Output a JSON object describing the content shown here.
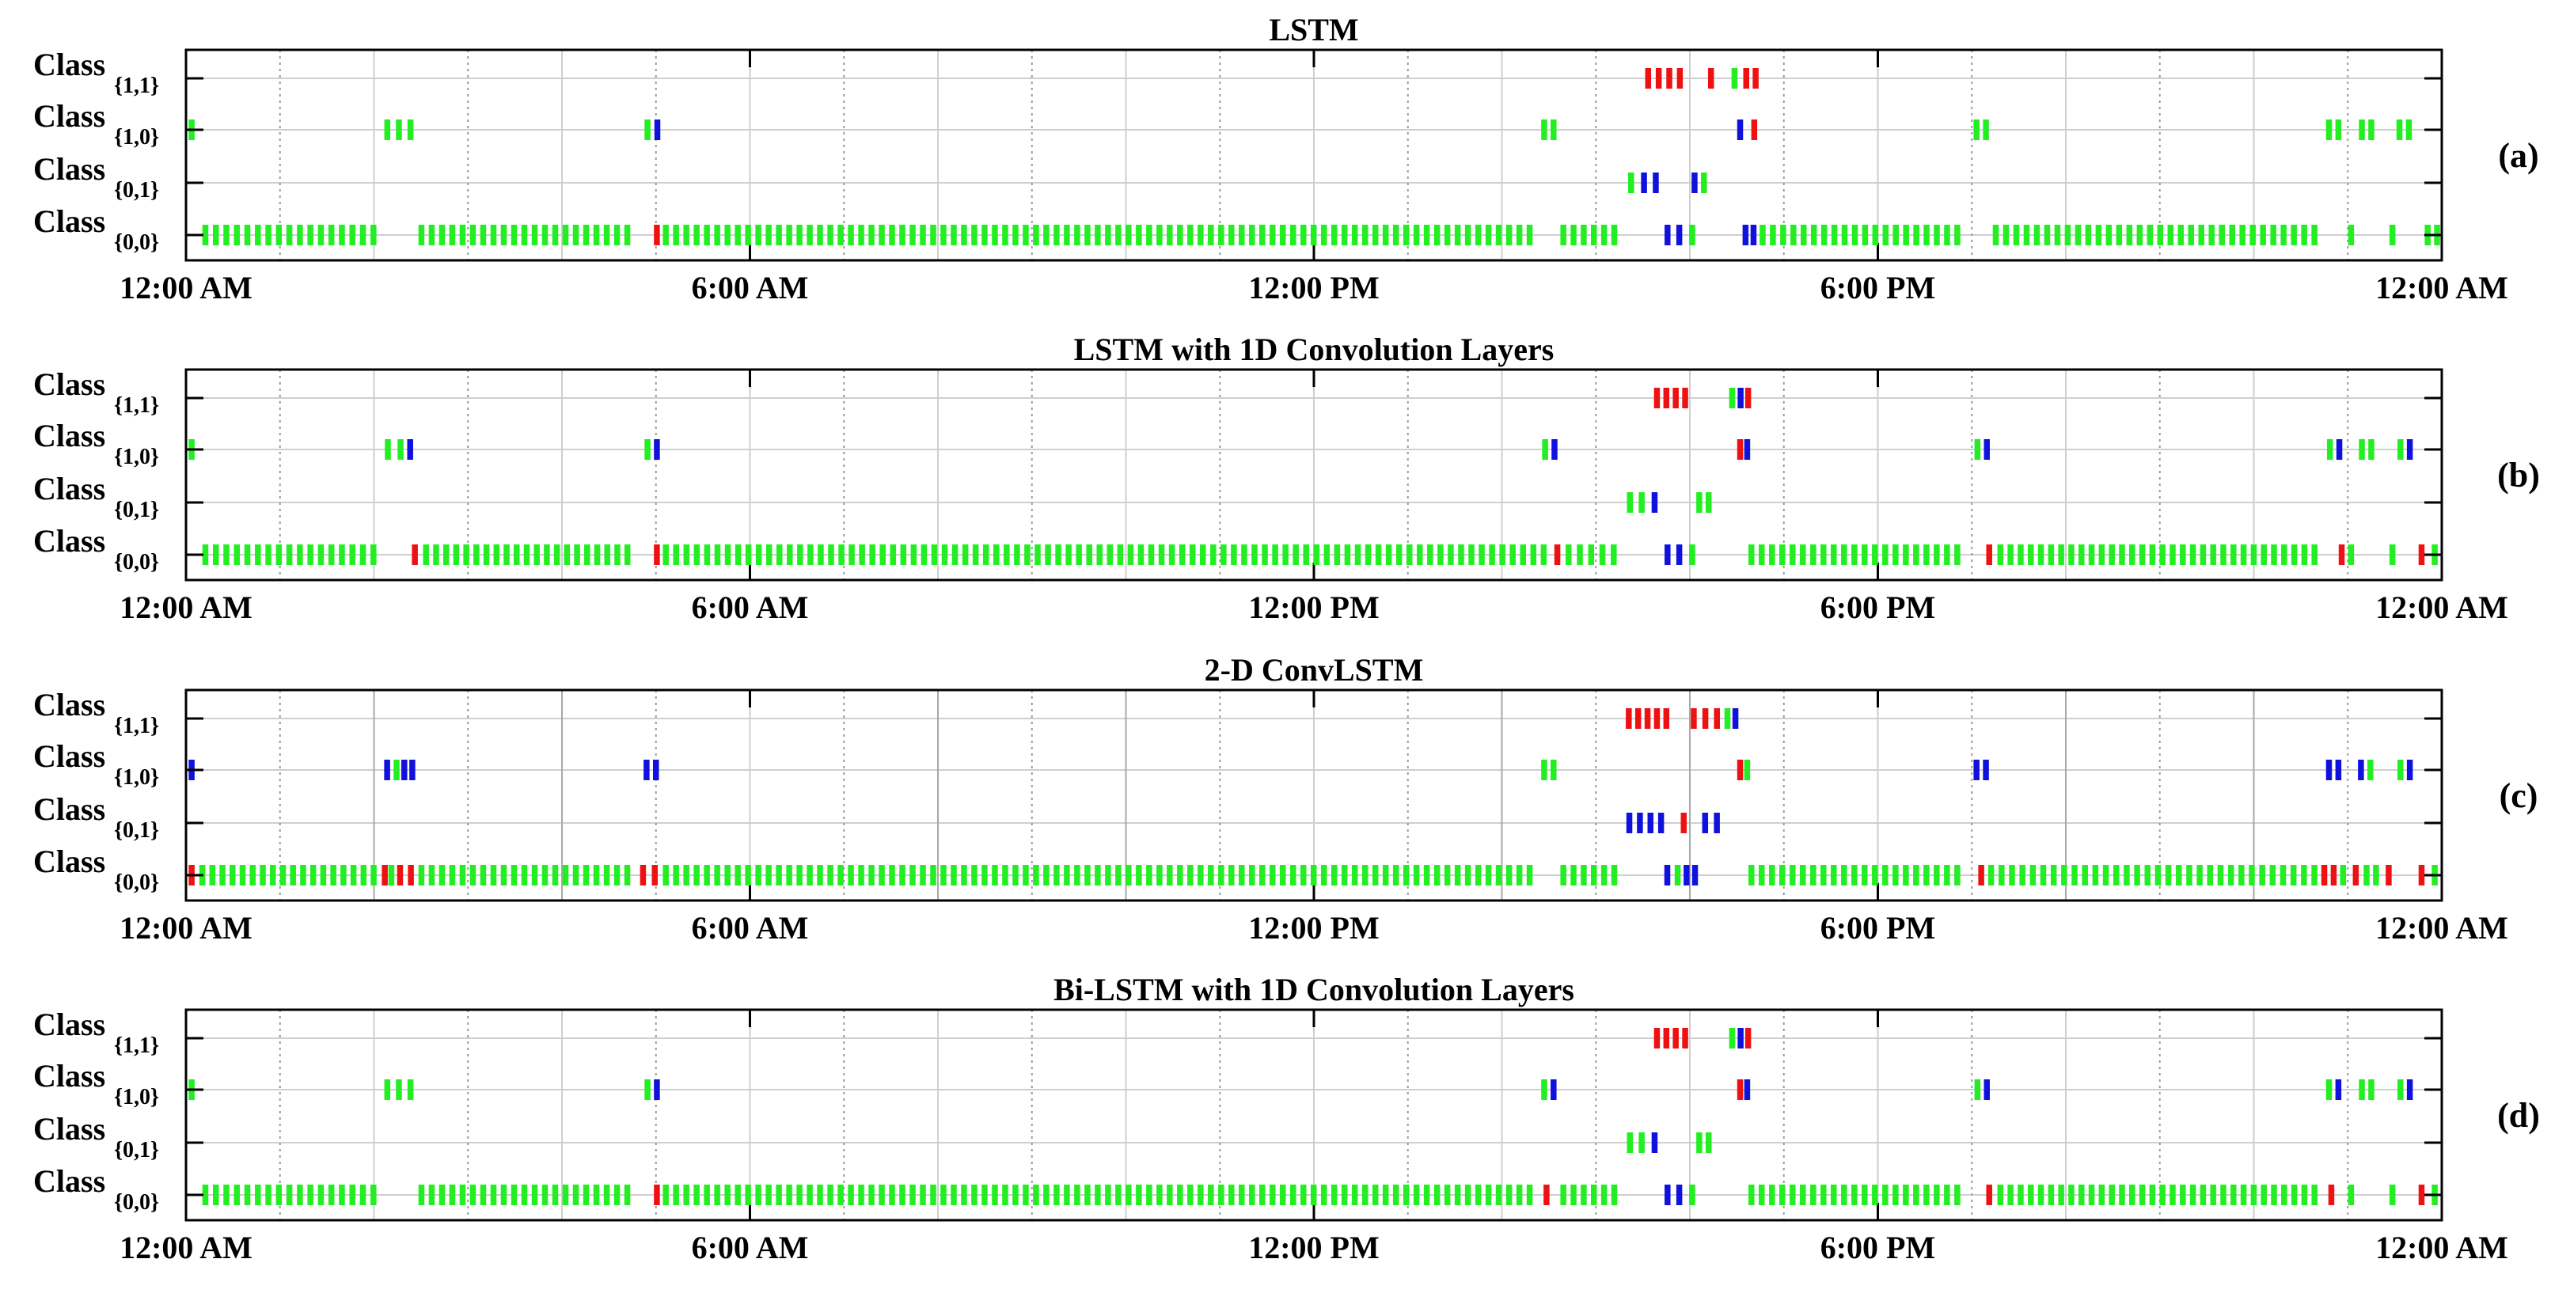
{
  "figure": {
    "x_ticks": [
      "12:00 AM",
      "6:00 AM",
      "12:00 PM",
      "6:00 PM",
      "12:00 AM"
    ],
    "class_levels": [
      {
        "label": "Class",
        "sub": "{1,1}"
      },
      {
        "label": "Class",
        "sub": "{1,0}"
      },
      {
        "label": "Class",
        "sub": "{0,1}"
      },
      {
        "label": "Class",
        "sub": "{0,0}"
      }
    ],
    "colors": {
      "green": "#22ee22",
      "red": "#ee1111",
      "blue": "#1111dd",
      "grid": "#cfcfcf",
      "dotted": "#9a9a9a",
      "axis": "#000000"
    }
  },
  "chart_data": [
    {
      "type": "scatter",
      "title": "LSTM",
      "panel_label": "(a)",
      "xlim_hours": [
        0,
        24
      ],
      "y_levels": [
        "{0,0}",
        "{0,1}",
        "{1,0}",
        "{1,1}"
      ],
      "marks": {
        "{1,1}": [
          [
            "red",
            15.5,
            15.95
          ],
          [
            "red",
            16.15,
            16.3
          ],
          [
            "green",
            16.4,
            16.55
          ],
          [
            "red",
            16.55,
            16.75
          ]
        ],
        "{1,0}": [
          [
            "green",
            0.0,
            0.12
          ],
          [
            "green",
            2.08,
            2.45
          ],
          [
            "green",
            4.85,
            4.97
          ],
          [
            "blue",
            4.98,
            5.05
          ],
          [
            "green",
            14.4,
            14.6
          ],
          [
            "blue",
            16.5,
            16.57
          ],
          [
            "red",
            16.65,
            16.72
          ],
          [
            "green",
            19.0,
            19.2
          ],
          [
            "green",
            22.75,
            22.95
          ],
          [
            "green",
            23.1,
            23.3
          ],
          [
            "green",
            23.5,
            23.7
          ]
        ],
        "{0,1}": [
          [
            "green",
            15.3,
            15.45
          ],
          [
            "blue",
            15.45,
            15.7
          ],
          [
            "blue",
            16.0,
            16.1
          ],
          [
            "green",
            16.1,
            16.2
          ]
        ],
        "{0,0}": [
          [
            "green",
            0.15,
            2.05
          ],
          [
            "green",
            2.45,
            4.75
          ],
          [
            "red",
            4.97,
            5.05
          ],
          [
            "green",
            5.05,
            14.35
          ],
          [
            "green",
            14.6,
            15.25
          ],
          [
            "blue",
            15.7,
            15.95
          ],
          [
            "green",
            15.95,
            16.1
          ],
          [
            "blue",
            16.55,
            16.72
          ],
          [
            "green",
            16.72,
            18.9
          ],
          [
            "green",
            19.2,
            22.7
          ],
          [
            "green",
            23.0,
            23.07
          ],
          [
            "green",
            23.4,
            23.55
          ],
          [
            "green",
            23.8,
            24.0
          ]
        ]
      }
    },
    {
      "type": "scatter",
      "title": "LSTM with 1D Convolution Layers",
      "panel_label": "(b)",
      "xlim_hours": [
        0,
        24
      ],
      "y_levels": [
        "{0,0}",
        "{0,1}",
        "{1,0}",
        "{1,1}"
      ],
      "marks": {
        "{1,1}": [
          [
            "red",
            15.6,
            16.0
          ],
          [
            "green",
            16.4,
            16.5
          ],
          [
            "blue",
            16.5,
            16.58
          ],
          [
            "red",
            16.58,
            16.66
          ]
        ],
        "{1,0}": [
          [
            "green",
            0.0,
            0.12
          ],
          [
            "green",
            2.08,
            2.35
          ],
          [
            "blue",
            2.35,
            2.42
          ],
          [
            "green",
            4.85,
            4.97
          ],
          [
            "blue",
            4.97,
            5.05
          ],
          [
            "green",
            14.4,
            14.52
          ],
          [
            "blue",
            14.52,
            14.6
          ],
          [
            "red",
            16.5,
            16.57
          ],
          [
            "blue",
            16.57,
            16.65
          ],
          [
            "green",
            19.0,
            19.12
          ],
          [
            "blue",
            19.12,
            19.2
          ],
          [
            "green",
            22.75,
            22.87
          ],
          [
            "blue",
            22.87,
            22.95
          ],
          [
            "green",
            23.1,
            23.3
          ],
          [
            "green",
            23.5,
            23.62
          ],
          [
            "blue",
            23.62,
            23.7
          ]
        ],
        "{0,1}": [
          [
            "green",
            15.3,
            15.55
          ],
          [
            "blue",
            15.55,
            15.7
          ],
          [
            "green",
            16.05,
            16.25
          ]
        ],
        "{0,0}": [
          [
            "green",
            0.15,
            2.05
          ],
          [
            "red",
            2.4,
            2.47
          ],
          [
            "green",
            2.5,
            4.75
          ],
          [
            "red",
            4.97,
            5.05
          ],
          [
            "green",
            5.05,
            14.5
          ],
          [
            "red",
            14.55,
            14.63
          ],
          [
            "green",
            14.65,
            15.25
          ],
          [
            "blue",
            15.7,
            15.95
          ],
          [
            "green",
            15.95,
            16.1
          ],
          [
            "green",
            16.6,
            18.9
          ],
          [
            "red",
            19.15,
            19.22
          ],
          [
            "green",
            19.25,
            22.7
          ],
          [
            "red",
            22.9,
            22.97
          ],
          [
            "green",
            23.0,
            23.07
          ],
          [
            "green",
            23.4,
            23.55
          ],
          [
            "red",
            23.75,
            23.82
          ],
          [
            "green",
            23.85,
            24.0
          ]
        ]
      }
    },
    {
      "type": "scatter",
      "title": "2-D ConvLSTM",
      "panel_label": "(c)",
      "xlim_hours": [
        0,
        24
      ],
      "y_levels": [
        "{0,0}",
        "{0,1}",
        "{1,0}",
        "{1,1}"
      ],
      "marks": {
        "{1,1}": [
          [
            "red",
            15.3,
            15.8
          ],
          [
            "red",
            15.98,
            16.35
          ],
          [
            "green",
            16.35,
            16.45
          ],
          [
            "blue",
            16.45,
            16.52
          ]
        ],
        "{1,0}": [
          [
            "blue",
            0.0,
            0.12
          ],
          [
            "blue",
            2.08,
            2.2
          ],
          [
            "green",
            2.2,
            2.28
          ],
          [
            "blue",
            2.28,
            2.45
          ],
          [
            "blue",
            4.85,
            5.05
          ],
          [
            "green",
            14.4,
            14.6
          ],
          [
            "red",
            16.5,
            16.57
          ],
          [
            "green",
            16.57,
            16.65
          ],
          [
            "blue",
            19.0,
            19.2
          ],
          [
            "blue",
            22.75,
            22.95
          ],
          [
            "blue",
            23.1,
            23.18
          ],
          [
            "green",
            23.18,
            23.3
          ],
          [
            "green",
            23.5,
            23.62
          ],
          [
            "blue",
            23.62,
            23.7
          ]
        ],
        "{0,1}": [
          [
            "blue",
            15.3,
            15.75
          ],
          [
            "red",
            15.9,
            15.97
          ],
          [
            "blue",
            16.1,
            16.35
          ]
        ],
        "{0,0}": [
          [
            "red",
            0.0,
            0.12
          ],
          [
            "green",
            0.12,
            2.05
          ],
          [
            "red",
            2.08,
            2.15
          ],
          [
            "green",
            2.15,
            2.22
          ],
          [
            "red",
            2.22,
            2.45
          ],
          [
            "green",
            2.45,
            4.75
          ],
          [
            "red",
            4.8,
            5.05
          ],
          [
            "green",
            5.05,
            14.35
          ],
          [
            "green",
            14.6,
            15.25
          ],
          [
            "blue",
            15.7,
            15.82
          ],
          [
            "green",
            15.82,
            15.92
          ],
          [
            "blue",
            15.92,
            16.1
          ],
          [
            "green",
            16.6,
            18.9
          ],
          [
            "red",
            19.05,
            19.15
          ],
          [
            "green",
            19.15,
            22.7
          ],
          [
            "red",
            22.7,
            22.9
          ],
          [
            "green",
            22.9,
            23.0
          ],
          [
            "red",
            23.05,
            23.12
          ],
          [
            "green",
            23.15,
            23.35
          ],
          [
            "red",
            23.4,
            23.47
          ],
          [
            "red",
            23.75,
            23.82
          ],
          [
            "green",
            23.85,
            24.0
          ]
        ]
      }
    },
    {
      "type": "scatter",
      "title": "Bi-LSTM with 1D Convolution Layers",
      "panel_label": "(d)",
      "xlim_hours": [
        0,
        24
      ],
      "y_levels": [
        "{0,0}",
        "{0,1}",
        "{1,0}",
        "{1,1}"
      ],
      "marks": {
        "{1,1}": [
          [
            "red",
            15.6,
            16.0
          ],
          [
            "green",
            16.4,
            16.5
          ],
          [
            "blue",
            16.5,
            16.58
          ],
          [
            "red",
            16.58,
            16.66
          ]
        ],
        "{1,0}": [
          [
            "green",
            0.0,
            0.12
          ],
          [
            "green",
            2.08,
            2.45
          ],
          [
            "green",
            4.85,
            4.97
          ],
          [
            "blue",
            4.97,
            5.05
          ],
          [
            "green",
            14.4,
            14.5
          ],
          [
            "blue",
            14.5,
            14.6
          ],
          [
            "red",
            16.5,
            16.57
          ],
          [
            "blue",
            16.57,
            16.65
          ],
          [
            "green",
            19.0,
            19.12
          ],
          [
            "blue",
            19.12,
            19.2
          ],
          [
            "green",
            22.75,
            22.85
          ],
          [
            "blue",
            22.85,
            22.95
          ],
          [
            "green",
            23.1,
            23.3
          ],
          [
            "green",
            23.5,
            23.62
          ],
          [
            "blue",
            23.62,
            23.7
          ]
        ],
        "{0,1}": [
          [
            "green",
            15.3,
            15.55
          ],
          [
            "blue",
            15.55,
            15.7
          ],
          [
            "green",
            16.05,
            16.25
          ]
        ],
        "{0,0}": [
          [
            "green",
            0.15,
            2.05
          ],
          [
            "green",
            2.45,
            4.75
          ],
          [
            "red",
            4.97,
            5.05
          ],
          [
            "green",
            5.05,
            14.35
          ],
          [
            "red",
            14.4,
            14.55
          ],
          [
            "green",
            14.6,
            15.25
          ],
          [
            "blue",
            15.7,
            15.95
          ],
          [
            "green",
            15.95,
            16.1
          ],
          [
            "green",
            16.6,
            18.9
          ],
          [
            "red",
            19.15,
            19.22
          ],
          [
            "green",
            19.25,
            22.7
          ],
          [
            "red",
            22.75,
            22.9
          ],
          [
            "green",
            23.0,
            23.07
          ],
          [
            "green",
            23.4,
            23.55
          ],
          [
            "red",
            23.75,
            23.82
          ],
          [
            "green",
            23.85,
            24.0
          ]
        ]
      }
    }
  ]
}
